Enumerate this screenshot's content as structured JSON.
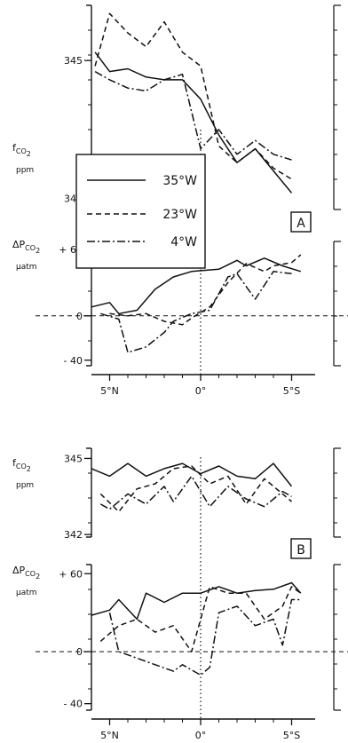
{
  "chart_data": [
    {
      "panel": "A",
      "type": "line",
      "subplots": [
        {
          "type": "line",
          "ylabel": [
            "f",
            "CO",
            "2",
            "ppm"
          ],
          "ylim": [
            339.6,
            347.0
          ],
          "yticks": [
            340,
            345
          ],
          "ytick_labels": [
            "340",
            "345"
          ],
          "xlim": [
            6.0,
            -6.0
          ],
          "series": [
            {
              "name": "35°W",
              "style": "solid",
              "x": [
                5.8,
                5.0,
                4.0,
                3.0,
                2.0,
                1.0,
                0.0,
                -1.0,
                -2.0,
                -3.0,
                -4.0,
                -5.0
              ],
              "y": [
                345.3,
                344.6,
                344.7,
                344.4,
                344.3,
                344.3,
                343.6,
                342.3,
                341.3,
                341.8,
                341.0,
                340.2
              ]
            },
            {
              "name": "23°W",
              "style": "dashed",
              "x": [
                5.8,
                5.0,
                4.0,
                3.0,
                2.0,
                1.0,
                0.0,
                -1.0,
                -2.0,
                -3.0,
                -4.0,
                -5.0
              ],
              "y": [
                344.8,
                346.7,
                346.0,
                345.5,
                346.4,
                345.3,
                344.8,
                341.9,
                341.3,
                341.8,
                341.1,
                340.7
              ]
            },
            {
              "name": "4°W",
              "style": "dashdot",
              "x": [
                5.8,
                5.0,
                4.0,
                3.0,
                2.0,
                1.0,
                0.0,
                -1.0,
                -2.0,
                -3.0,
                -4.0,
                -5.0
              ],
              "y": [
                344.6,
                344.3,
                344.0,
                343.9,
                344.3,
                344.5,
                341.8,
                342.5,
                341.6,
                342.1,
                341.6,
                341.4
              ]
            }
          ]
        },
        {
          "type": "line",
          "ylabel": [
            "ΔP",
            "CO",
            "2",
            "μatm"
          ],
          "ylim": [
            -45,
            67
          ],
          "yticks": [
            60,
            0,
            -40
          ],
          "ytick_labels": [
            "+ 60",
            "0",
            "- 40"
          ],
          "reference_line_y": 0,
          "xlim": [
            6.0,
            -6.0
          ],
          "xticks": [
            5,
            0,
            -5
          ],
          "xtick_labels": [
            "5°N",
            "0°",
            "5°S"
          ],
          "series": [
            {
              "name": "35°W",
              "style": "solid",
              "x": [
                6.0,
                5.0,
                4.5,
                3.5,
                2.5,
                1.5,
                0.5,
                -1.0,
                -2.0,
                -2.5,
                -3.5,
                -4.5,
                -5.5
              ],
              "y": [
                8,
                12,
                2,
                5,
                24,
                35,
                40,
                42,
                50,
                45,
                52,
                45,
                40
              ]
            },
            {
              "name": "23°W",
              "style": "dashed",
              "x": [
                5.0,
                4.0,
                3.0,
                2.0,
                1.0,
                0.5,
                -0.5,
                -1.5,
                -2.5,
                -3.5,
                -4.0,
                -5.0,
                -5.5
              ],
              "y": [
                2,
                0,
                2,
                -5,
                -8,
                -2,
                8,
                30,
                47,
                40,
                45,
                48,
                55
              ]
            },
            {
              "name": "4°W",
              "style": "dashdot",
              "x": [
                5.5,
                4.5,
                4.0,
                3.0,
                2.0,
                1.5,
                0.5,
                -0.5,
                -1.5,
                -2.0,
                -3.0,
                -4.0,
                -5.0
              ],
              "y": [
                2,
                -3,
                -33,
                -28,
                -15,
                -5,
                2,
                5,
                35,
                38,
                15,
                40,
                38
              ]
            }
          ]
        }
      ]
    },
    {
      "panel": "B",
      "type": "line",
      "subplots": [
        {
          "type": "line",
          "ylabel": [
            "f",
            "CO",
            "2",
            "ppm"
          ],
          "ylim": [
            341.9,
            345.4
          ],
          "yticks": [
            345,
            342
          ],
          "ytick_labels": [
            "345",
            "342"
          ],
          "xlim": [
            6.0,
            -6.0
          ],
          "series": [
            {
              "name": "35°W",
              "style": "solid",
              "x": [
                6.0,
                5.0,
                4.0,
                3.0,
                2.0,
                1.0,
                0.0,
                -1.0,
                -2.0,
                -3.0,
                -4.0,
                -5.0
              ],
              "y": [
                344.6,
                344.3,
                344.8,
                344.3,
                344.6,
                344.8,
                344.4,
                344.7,
                344.3,
                344.2,
                344.8,
                343.9
              ]
            },
            {
              "name": "23°W",
              "style": "dashed",
              "x": [
                5.5,
                4.5,
                3.5,
                2.5,
                1.5,
                0.5,
                -0.5,
                -1.5,
                -2.5,
                -3.5,
                -4.5,
                -5.0
              ],
              "y": [
                343.6,
                342.9,
                343.8,
                344.0,
                344.6,
                344.7,
                344.0,
                344.3,
                343.2,
                344.2,
                343.6,
                343.3
              ]
            },
            {
              "name": "4°W",
              "style": "dashdot",
              "x": [
                5.5,
                5.0,
                4.0,
                3.0,
                2.0,
                1.5,
                0.5,
                -0.5,
                -1.5,
                -2.5,
                -3.5,
                -4.5,
                -5.0
              ],
              "y": [
                343.2,
                343.0,
                343.6,
                343.2,
                343.9,
                343.3,
                344.3,
                343.1,
                343.9,
                343.4,
                343.1,
                343.7,
                343.5
              ]
            }
          ]
        },
        {
          "type": "line",
          "ylabel": [
            "ΔP",
            "CO",
            "2",
            "μatm"
          ],
          "ylim": [
            -45,
            67
          ],
          "yticks": [
            60,
            0,
            -40
          ],
          "ytick_labels": [
            "+ 60",
            "0",
            "- 40"
          ],
          "reference_line_y": 0,
          "xlim": [
            6.0,
            -6.0
          ],
          "xticks": [
            5,
            0,
            -5
          ],
          "xtick_labels": [
            "5°N",
            "0°",
            "5°S"
          ],
          "series": [
            {
              "name": "35°W",
              "style": "solid",
              "x": [
                6.0,
                5.0,
                4.5,
                3.5,
                3.0,
                2.0,
                1.0,
                0.0,
                -1.0,
                -2.0,
                -3.0,
                -4.0,
                -5.0,
                -5.5
              ],
              "y": [
                28,
                32,
                40,
                25,
                45,
                38,
                45,
                45,
                50,
                45,
                47,
                48,
                53,
                45
              ]
            },
            {
              "name": "23°W",
              "style": "dashed",
              "x": [
                5.5,
                4.5,
                3.5,
                2.5,
                1.5,
                0.5,
                -0.5,
                -1.5,
                -2.5,
                -3.5,
                -4.5,
                -5.0,
                -5.5
              ],
              "y": [
                8,
                20,
                25,
                15,
                20,
                0,
                50,
                45,
                45,
                25,
                35,
                50,
                45
              ]
            },
            {
              "name": "4°W",
              "style": "dashdot",
              "x": [
                5.0,
                4.5,
                3.5,
                2.5,
                1.5,
                1.0,
                0.0,
                -0.5,
                -1.0,
                -2.0,
                -3.0,
                -4.0,
                -4.5,
                -5.0,
                -5.5
              ],
              "y": [
                30,
                0,
                -5,
                -10,
                -15,
                -10,
                -18,
                -12,
                30,
                35,
                20,
                25,
                5,
                40,
                40
              ]
            }
          ]
        }
      ]
    }
  ],
  "legend": [
    {
      "label": "35°W",
      "style": "solid"
    },
    {
      "label": "23°W",
      "style": "dashed"
    },
    {
      "label": "4°W",
      "style": "dashdot"
    }
  ],
  "colors": {
    "ink": "#111111",
    "background": "#ffffff"
  }
}
